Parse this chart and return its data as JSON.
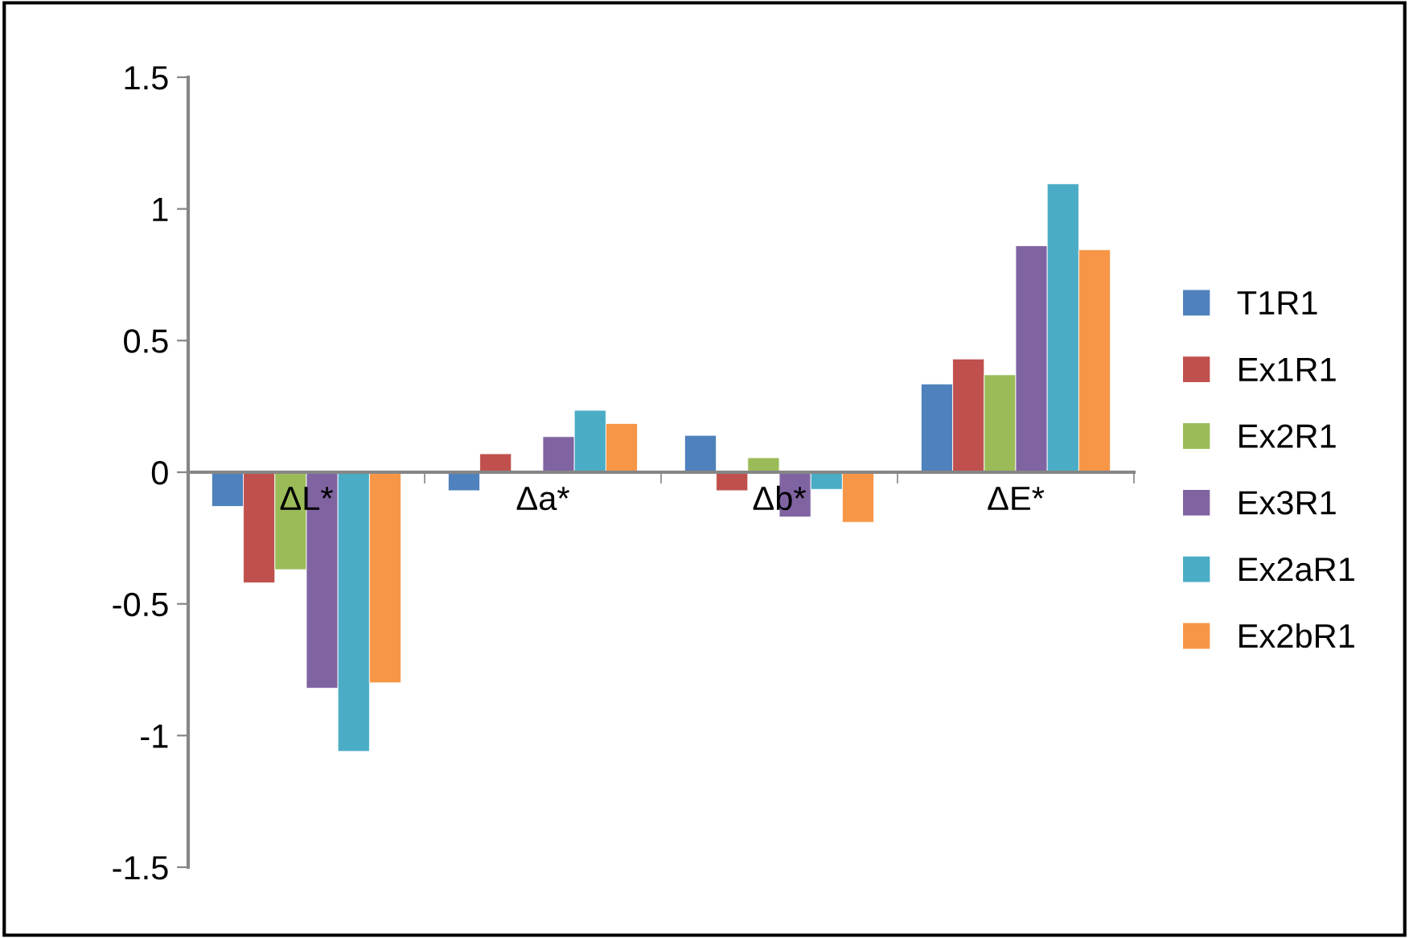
{
  "chart_data": {
    "type": "bar",
    "categories": [
      "ΔL*",
      "Δa*",
      "Δb*",
      "ΔE*"
    ],
    "series": [
      {
        "name": "T1R1",
        "color": "#4f81bd",
        "values": [
          -0.13,
          -0.07,
          0.14,
          0.335
        ]
      },
      {
        "name": "Ex1R1",
        "color": "#c0504d",
        "values": [
          -0.42,
          0.07,
          -0.07,
          0.43
        ]
      },
      {
        "name": "Ex2R1",
        "color": "#9bbb59",
        "values": [
          -0.37,
          null,
          0.055,
          0.37
        ]
      },
      {
        "name": "Ex3R1",
        "color": "#8064a2",
        "values": [
          -0.82,
          0.135,
          -0.17,
          0.86
        ]
      },
      {
        "name": "Ex2aR1",
        "color": "#4bacc6",
        "values": [
          -1.06,
          0.235,
          -0.065,
          1.095
        ]
      },
      {
        "name": "Ex2bR1",
        "color": "#f79646",
        "values": [
          -0.8,
          0.185,
          -0.19,
          0.845
        ]
      }
    ],
    "ylim": [
      -1.5,
      1.5
    ],
    "yticks": [
      {
        "value": 1.5,
        "label": "1.5"
      },
      {
        "value": 1,
        "label": "1"
      },
      {
        "value": 0.5,
        "label": "0.5"
      },
      {
        "value": 0,
        "label": "0"
      },
      {
        "value": -0.5,
        "label": "-0.5"
      },
      {
        "value": -1,
        "label": "-1"
      },
      {
        "value": -1.5,
        "label": "-1.5"
      }
    ],
    "grid": false,
    "legend": "right"
  }
}
